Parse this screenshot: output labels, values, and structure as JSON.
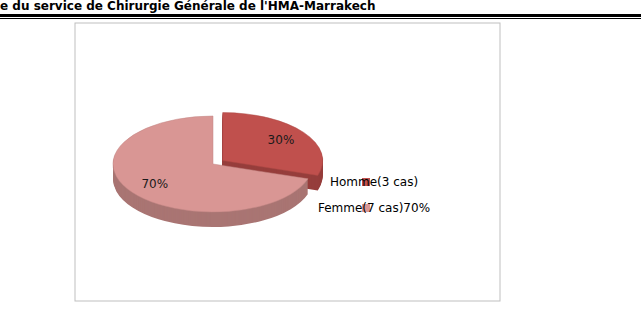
{
  "chart_data": {
    "type": "pie",
    "title": "e du service de Chirurgie Générale de l'HMA-Marrakech",
    "categories": [
      "Homme(3 cas)",
      "Femme(7 cas)70%"
    ],
    "values": [
      30,
      70
    ],
    "value_labels": [
      "30%",
      "70%"
    ],
    "colors": [
      "#c0504d",
      "#d99694"
    ],
    "data_labels": true,
    "legend": "right"
  }
}
